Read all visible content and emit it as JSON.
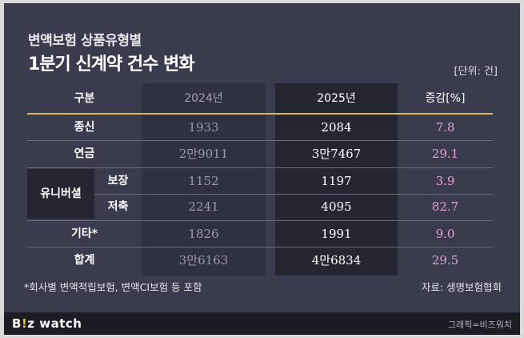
{
  "title_line1": "변액보험 상품유형별",
  "title_line2": "1분기 신계약 건수 변화",
  "unit": "[단위: 건]",
  "headers": {
    "category": "구분",
    "y2024": "2024년",
    "y2025": "2025년",
    "change": "증감[%]"
  },
  "rows": [
    {
      "label": "종신",
      "y2024": "1933",
      "y2025": "2084",
      "change": "7.8"
    },
    {
      "label": "연금",
      "y2024": "2만9011",
      "y2025": "3만7467",
      "change": "29.1"
    },
    {
      "group": "유니버셜",
      "label": "보장",
      "y2024": "1152",
      "y2025": "1197",
      "change": "3.9"
    },
    {
      "group": "유니버셜",
      "label": "저축",
      "y2024": "2241",
      "y2025": "4095",
      "change": "82.7"
    },
    {
      "label": "기타*",
      "y2024": "1826",
      "y2025": "1991",
      "change": "9.0"
    },
    {
      "label": "합계",
      "y2024": "3만6163",
      "y2025": "4만6834",
      "change": "29.5"
    }
  ],
  "group_label": "유니버셜",
  "footnote": "*회사별 변액적립보험, 변액CI보험 등 포함",
  "source": "자료: 생명보험협회",
  "logo": {
    "part1": "B",
    "accent": "!",
    "part2": "z watch"
  },
  "credit": "그래픽=비즈워치",
  "colors": {
    "background": "#3a3b4d",
    "gold_rule": "#d8b860",
    "change_text": "#e0a0d8"
  }
}
